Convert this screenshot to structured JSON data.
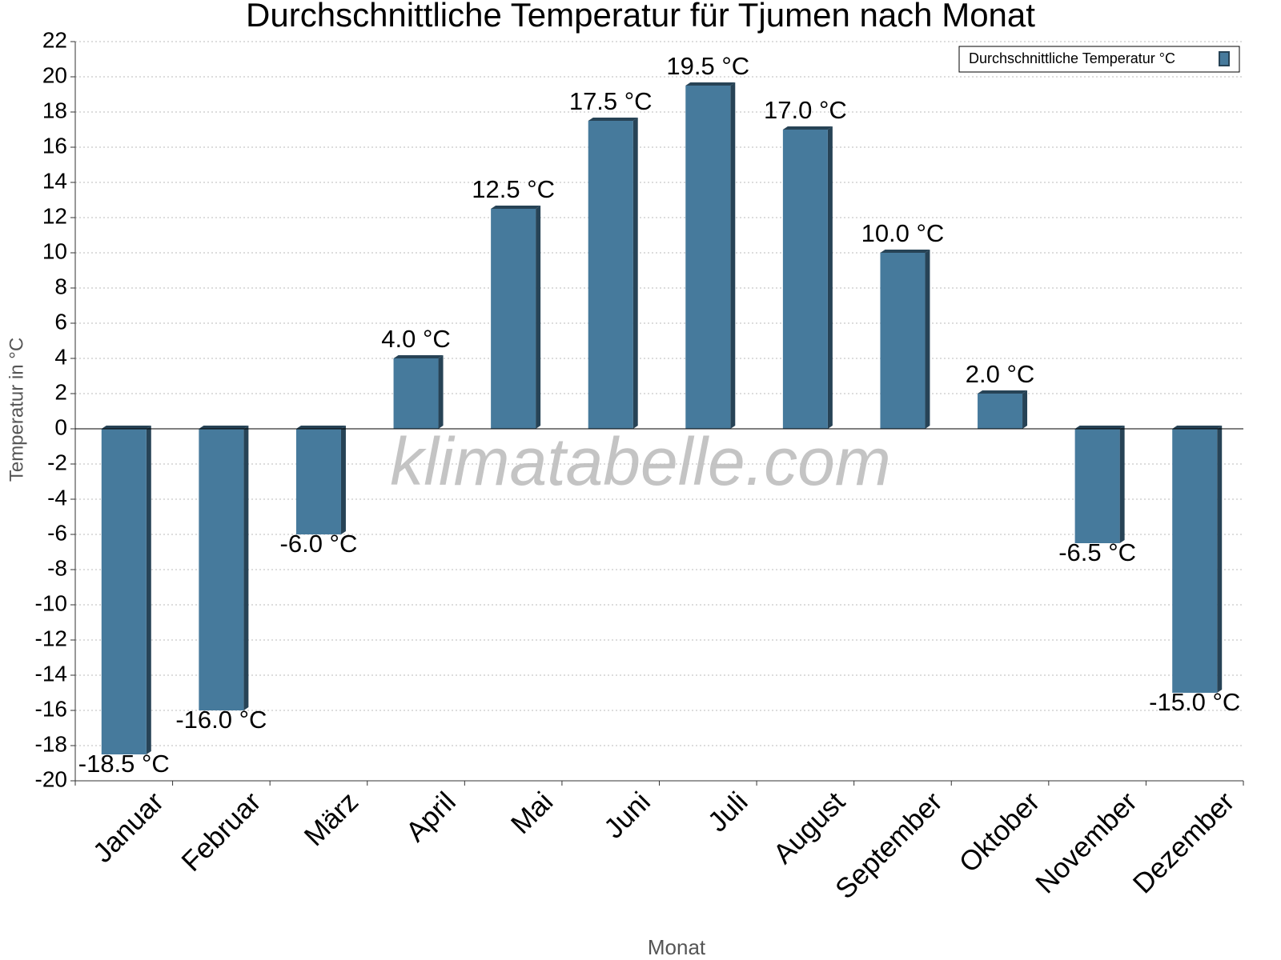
{
  "chart_data": {
    "type": "bar",
    "title": "Durchschnittliche Temperatur für Tjumen nach Monat",
    "x_label": "Monat",
    "y_label": "Temperatur in °C",
    "watermark": "klimatabelle.com",
    "categories": [
      "Januar",
      "Februar",
      "März",
      "April",
      "Mai",
      "Juni",
      "Juli",
      "August",
      "September",
      "Oktober",
      "November",
      "Dezember"
    ],
    "series": [
      {
        "name": "Durchschnittliche Temperatur °C",
        "color": "#467a9c",
        "values": [
          -18.5,
          -16,
          -6,
          4,
          12.5,
          17.5,
          19.5,
          17,
          10,
          2,
          -6.5,
          -15
        ],
        "value_labels": [
          "-18.5 °C",
          "-16.0 °C",
          "-6.0 °C",
          "4.0 °C",
          "12.5 °C",
          "17.5 °C",
          "19.5 °C",
          "17.0 °C",
          "10.0 °C",
          "2.0 °C",
          "-6.5 °C",
          "-15.0 °C"
        ]
      }
    ],
    "ylim": [
      -20,
      22
    ],
    "yticks": [
      -20,
      -18,
      -16,
      -14,
      -12,
      -10,
      -8,
      -6,
      -4,
      -2,
      0,
      2,
      4,
      6,
      8,
      10,
      12,
      14,
      16,
      18,
      20,
      22
    ],
    "grid": true,
    "legend": "top-right"
  }
}
